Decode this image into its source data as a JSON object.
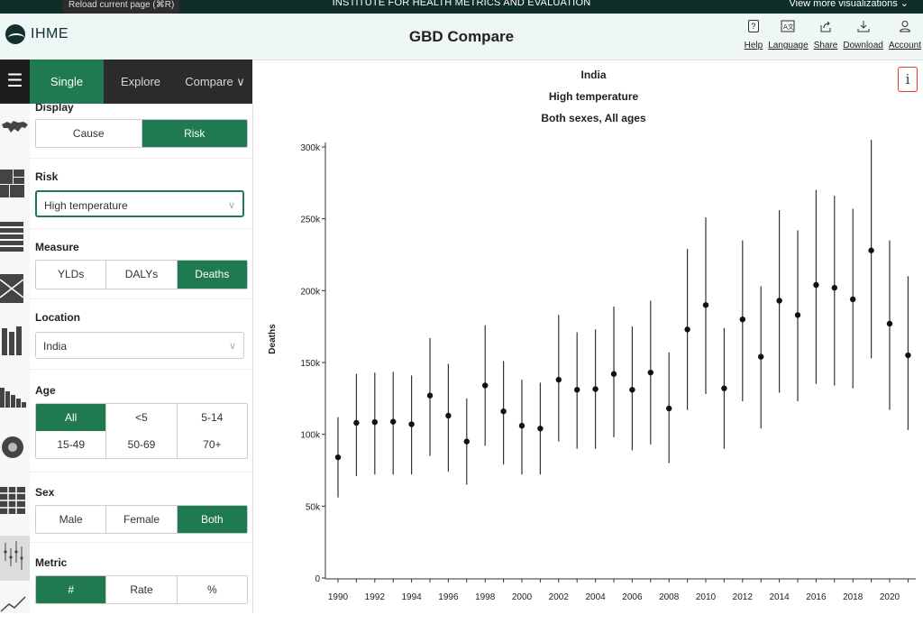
{
  "topbar": {
    "tooltip": "Reload current page (⌘R)",
    "institute": "INSTITUTE FOR HEALTH METRICS AND EVALUATION",
    "more_viz": "View more visualizations ⌄"
  },
  "header": {
    "logo_text": "IHME",
    "app_title": "GBD Compare",
    "tools": [
      {
        "icon": "help-icon",
        "label": "Help"
      },
      {
        "icon": "language-icon",
        "label": "Language"
      },
      {
        "icon": "share-icon",
        "label": "Share"
      },
      {
        "icon": "download-icon",
        "label": "Download"
      },
      {
        "icon": "account-icon",
        "label": "Account"
      }
    ]
  },
  "tabs": {
    "single": "Single",
    "explore": "Explore",
    "compare": "Compare ∨"
  },
  "panel": {
    "display": {
      "title": "Display",
      "options": [
        "Cause",
        "Risk"
      ],
      "selected": "Risk"
    },
    "risk": {
      "title": "Risk",
      "value": "High temperature"
    },
    "measure": {
      "title": "Measure",
      "options": [
        "YLDs",
        "DALYs",
        "Deaths"
      ],
      "selected": "Deaths"
    },
    "location": {
      "title": "Location",
      "value": "India"
    },
    "age": {
      "title": "Age",
      "row1": [
        "All",
        "<5",
        "5-14"
      ],
      "row2": [
        "15-49",
        "50-69",
        "70+"
      ],
      "selected": "All"
    },
    "sex": {
      "title": "Sex",
      "options": [
        "Male",
        "Female",
        "Both"
      ],
      "selected": "Both"
    },
    "metric": {
      "title": "Metric",
      "options": [
        "#",
        "Rate",
        "%"
      ],
      "selected": "#"
    }
  },
  "chart_data": {
    "type": "scatter",
    "title_lines": [
      "India",
      "High temperature",
      "Both sexes, All ages"
    ],
    "ylabel": "Deaths",
    "ylim": [
      0,
      300000
    ],
    "yticks": [
      0,
      50000,
      100000,
      150000,
      200000,
      250000,
      300000
    ],
    "ytick_labels": [
      "0",
      "50k",
      "100k",
      "150k",
      "200k",
      "250k",
      "300k"
    ],
    "xlim": [
      1990,
      2021
    ],
    "xticks": [
      1990,
      1992,
      1994,
      1996,
      1998,
      2000,
      2002,
      2004,
      2006,
      2008,
      2010,
      2012,
      2014,
      2016,
      2018,
      2020
    ],
    "x": [
      1990,
      1991,
      1992,
      1993,
      1994,
      1995,
      1996,
      1997,
      1998,
      1999,
      2000,
      2001,
      2002,
      2003,
      2004,
      2005,
      2006,
      2007,
      2008,
      2009,
      2010,
      2011,
      2012,
      2013,
      2014,
      2015,
      2016,
      2017,
      2018,
      2019,
      2020,
      2021
    ],
    "values": [
      84000,
      108000,
      108500,
      108800,
      107000,
      127000,
      113000,
      95000,
      134000,
      116000,
      106000,
      104000,
      138000,
      131000,
      131500,
      142000,
      131000,
      143000,
      118000,
      173000,
      190000,
      132000,
      180000,
      154000,
      193000,
      183000,
      204000,
      202000,
      194000,
      228000,
      177000,
      155000
    ],
    "lower": [
      56000,
      71000,
      72000,
      72000,
      72000,
      85000,
      74000,
      65000,
      92000,
      79000,
      72000,
      72000,
      95000,
      90000,
      90000,
      98000,
      89000,
      93000,
      80000,
      117000,
      128000,
      90000,
      123000,
      104000,
      129000,
      123000,
      135000,
      134000,
      132000,
      153000,
      117000,
      103000
    ],
    "upper": [
      112000,
      142000,
      143000,
      143500,
      141000,
      167000,
      149000,
      125000,
      176000,
      151000,
      138000,
      136000,
      183000,
      171000,
      173000,
      189000,
      175000,
      193000,
      157000,
      229000,
      251000,
      174000,
      235000,
      203000,
      256000,
      242000,
      270000,
      266000,
      257000,
      305000,
      235000,
      210000
    ]
  }
}
